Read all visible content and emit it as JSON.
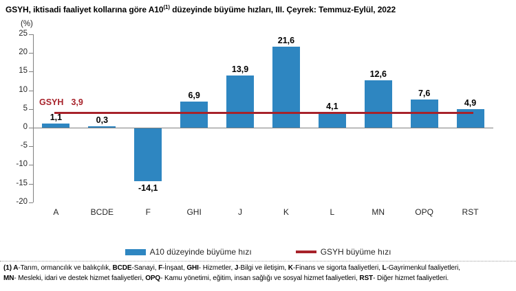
{
  "title": {
    "prefix": "GSYH, iktisadi faaliyet kollarına göre A10",
    "sup": "(1)",
    "suffix": " düzeyinde büyüme hızları, III. Çeyrek: Temmuz-Eylül, 2022"
  },
  "chart_data": {
    "type": "bar",
    "title": "GSYH, iktisadi faaliyet kollarına göre A10(1) düzeyinde büyüme hızları, III. Çeyrek: Temmuz-Eylül, 2022",
    "ylabel": "(%)",
    "xlabel": "",
    "ylim": [
      -20,
      25
    ],
    "ytick_step": 5,
    "yticks": [
      25,
      20,
      15,
      10,
      5,
      0,
      -5,
      -10,
      -15,
      -20
    ],
    "grid": false,
    "categories": [
      "A",
      "BCDE",
      "F",
      "GHI",
      "J",
      "K",
      "L",
      "MN",
      "OPQ",
      "RST"
    ],
    "values": [
      1.1,
      0.3,
      -14.1,
      6.9,
      13.9,
      21.6,
      4.1,
      12.6,
      7.6,
      4.9
    ],
    "value_labels": [
      "1,1",
      "0,3",
      "-14,1",
      "6,9",
      "13,9",
      "21,6",
      "4,1",
      "12,6",
      "7,6",
      "4,9"
    ],
    "bar_color": "#2E86C1",
    "axis_color": "#7F7F7F",
    "reference_line": {
      "label": "GSYH",
      "value": 3.9,
      "value_label": "3,9",
      "color": "#A7222A"
    },
    "legend": {
      "position": "bottom-center",
      "items": [
        {
          "label": "A10 düzeyinde büyüme hızı",
          "type": "bar",
          "color": "#2E86C1"
        },
        {
          "label": "GSYH büyüme hızı",
          "type": "line",
          "color": "#A7222A"
        }
      ]
    }
  },
  "footnote": {
    "lines": [
      [
        {
          "text": "(1) A",
          "bold": true
        },
        {
          "text": "-Tarım, ormancılık ve balıkçılık, ",
          "bold": false
        },
        {
          "text": "BCDE",
          "bold": true
        },
        {
          "text": "-Sanayi, ",
          "bold": false
        },
        {
          "text": "F",
          "bold": true
        },
        {
          "text": "-İnşaat, ",
          "bold": false
        },
        {
          "text": "GHI",
          "bold": true
        },
        {
          "text": "- Hizmetler, ",
          "bold": false
        },
        {
          "text": "J",
          "bold": true
        },
        {
          "text": "-Bilgi ve iletişim, ",
          "bold": false
        },
        {
          "text": "K",
          "bold": true
        },
        {
          "text": "-Finans ve sigorta faaliyetleri, ",
          "bold": false
        },
        {
          "text": "L",
          "bold": true
        },
        {
          "text": "-Gayrimenkul faaliyetleri,",
          "bold": false
        }
      ],
      [
        {
          "text": "MN",
          "bold": true
        },
        {
          "text": "- Mesleki, idari ve destek hizmet faaliyetleri, ",
          "bold": false
        },
        {
          "text": "OPQ",
          "bold": true
        },
        {
          "text": "- Kamu yönetimi, eğitim, insan sağlığı ve sosyal hizmet faaliyetleri, ",
          "bold": false
        },
        {
          "text": "RST",
          "bold": true
        },
        {
          "text": "- Diğer hizmet faaliyetleri.",
          "bold": false
        }
      ]
    ]
  }
}
